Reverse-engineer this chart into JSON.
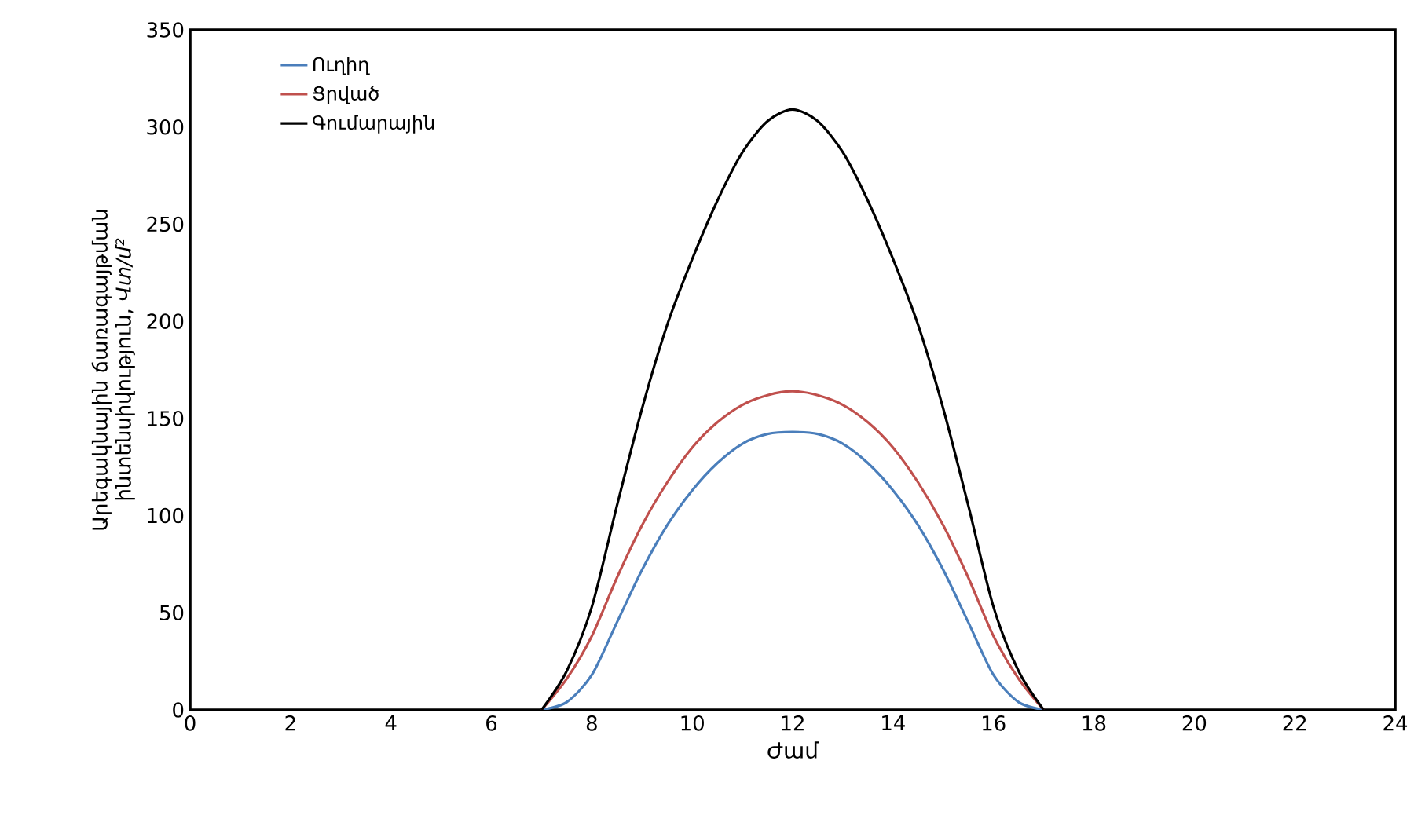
{
  "chart_data": {
    "type": "line",
    "xlabel": "Ժամ",
    "ylabel": "Արեգակնային ճառագայթման ինտենսիվություն, *Վտ/մ²*",
    "x": [
      7,
      7.5,
      8,
      8.5,
      9,
      9.5,
      10,
      10.5,
      11,
      11.5,
      12,
      12.5,
      13,
      13.5,
      14,
      14.5,
      15,
      15.5,
      16,
      16.5,
      17
    ],
    "series": [
      {
        "name": "Ուղիղ",
        "color": "#4a7ebb",
        "values": [
          0,
          4,
          18,
          45,
          72,
          95,
          113,
          127,
          137,
          142,
          143,
          142,
          137,
          127,
          113,
          95,
          72,
          45,
          18,
          4,
          0
        ]
      },
      {
        "name": "Ցրված",
        "color": "#c0504d",
        "values": [
          0,
          16,
          38,
          68,
          95,
          117,
          135,
          148,
          157,
          162,
          164,
          162,
          157,
          148,
          135,
          117,
          95,
          68,
          38,
          16,
          0
        ]
      },
      {
        "name": "Գումարային",
        "color": "#000000",
        "values": [
          0,
          20,
          53,
          105,
          155,
          198,
          232,
          262,
          287,
          303,
          309,
          303,
          287,
          262,
          232,
          198,
          155,
          105,
          53,
          20,
          0
        ]
      }
    ],
    "xlim": [
      0,
      24
    ],
    "xticks": [
      0,
      2,
      4,
      6,
      8,
      10,
      12,
      14,
      16,
      18,
      20,
      22,
      24
    ],
    "ylim": [
      0,
      350
    ],
    "yticks": [
      0,
      50,
      100,
      150,
      200,
      250,
      300,
      350
    ],
    "legend": "top left",
    "grid": false,
    "marker": "none",
    "line_style": "solid"
  }
}
